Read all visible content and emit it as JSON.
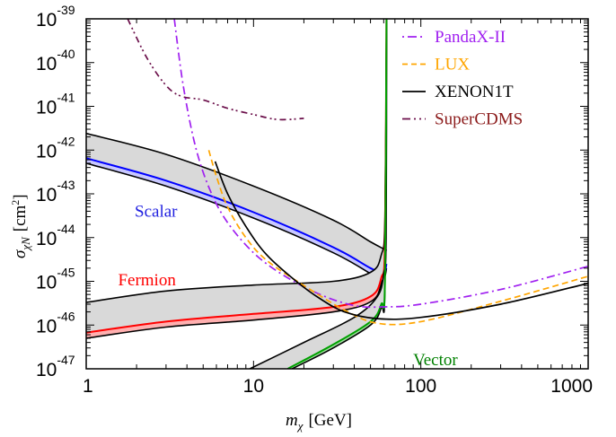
{
  "chart_data": {
    "type": "line",
    "title": "",
    "xlabel": "m_χ [GeV]",
    "xlabel_main": "m",
    "xlabel_sub": "χ",
    "xlabel_unit": "[GeV]",
    "ylabel": "σ_χN [cm²]",
    "ylabel_main": "σ",
    "ylabel_sub": "χN",
    "ylabel_unit_open": "[cm",
    "ylabel_unit_sup": "2",
    "ylabel_unit_close": "]",
    "xscale": "log",
    "yscale": "log",
    "xlim": [
      1,
      1000
    ],
    "ylim": [
      1e-47,
      1e-39
    ],
    "xticks": [
      {
        "value": 1,
        "label": "1"
      },
      {
        "value": 10,
        "label": "10"
      },
      {
        "value": 100,
        "label": "100"
      },
      {
        "value": 1000,
        "label": "1000"
      }
    ],
    "yticks": [
      {
        "value": -39,
        "base": "10",
        "exp": "-39"
      },
      {
        "value": -40,
        "base": "10",
        "exp": "-40"
      },
      {
        "value": -41,
        "base": "10",
        "exp": "-41"
      },
      {
        "value": -42,
        "base": "10",
        "exp": "-42"
      },
      {
        "value": -43,
        "base": "10",
        "exp": "-43"
      },
      {
        "value": -44,
        "base": "10",
        "exp": "-44"
      },
      {
        "value": -45,
        "base": "10",
        "exp": "-45"
      },
      {
        "value": -46,
        "base": "10",
        "exp": "-46"
      },
      {
        "value": -47,
        "base": "10",
        "exp": "-47"
      }
    ],
    "grid": false,
    "legend_position": "top-right",
    "legend": [
      {
        "name": "PandaX-II",
        "color": "#a020f0",
        "style": "dashdot"
      },
      {
        "name": "LUX",
        "color": "#ffa500",
        "style": "dashed"
      },
      {
        "name": "XENON1T",
        "color": "#000000",
        "style": "solid"
      },
      {
        "name": "SuperCDMS",
        "color": "#6b0f4a",
        "text_color": "#8b1a1a",
        "style": "dashdotdot"
      }
    ],
    "series": [
      {
        "name": "PandaX-II",
        "color": "#a020f0",
        "style": "dashdot",
        "points": [
          [
            3.36,
            1e-39
          ],
          [
            3.8,
            3e-41
          ],
          [
            4.5,
            1.2e-42
          ],
          [
            5.5,
            1.2e-43
          ],
          [
            7,
            2.2e-44
          ],
          [
            10,
            4.5e-45
          ],
          [
            15,
            1.4e-45
          ],
          [
            25,
            5e-46
          ],
          [
            40,
            2.8e-46
          ],
          [
            60,
            2.6e-46
          ],
          [
            100,
            3e-46
          ],
          [
            300,
            6.5e-46
          ],
          [
            1000,
            2.2e-45
          ]
        ]
      },
      {
        "name": "LUX",
        "color": "#ffa500",
        "style": "dashed",
        "points": [
          [
            5.4,
            1e-42
          ],
          [
            6,
            2.5e-43
          ],
          [
            7,
            5e-44
          ],
          [
            9,
            1e-44
          ],
          [
            12,
            3e-45
          ],
          [
            20,
            8e-46
          ],
          [
            35,
            2.2e-46
          ],
          [
            55,
            1.1e-46
          ],
          [
            100,
            1.2e-46
          ],
          [
            300,
            3.5e-46
          ],
          [
            1000,
            1.3e-45
          ]
        ]
      },
      {
        "name": "XENON1T",
        "color": "#000000",
        "style": "solid",
        "points": [
          [
            5.9,
            5.5e-43
          ],
          [
            7,
            1e-43
          ],
          [
            9,
            1.8e-44
          ],
          [
            12,
            4e-45
          ],
          [
            18,
            1e-45
          ],
          [
            25,
            4e-46
          ],
          [
            35,
            2e-46
          ],
          [
            55,
            1.4e-46
          ],
          [
            100,
            1.5e-46
          ],
          [
            300,
            3e-46
          ],
          [
            1000,
            9e-46
          ]
        ]
      },
      {
        "name": "SuperCDMS",
        "color": "#6b0f4a",
        "style": "dashdotdot",
        "points": [
          [
            1.77,
            1e-39
          ],
          [
            2.3,
            1.3e-40
          ],
          [
            3,
            3e-41
          ],
          [
            3.7,
            1.7e-41
          ],
          [
            5,
            1.4e-41
          ],
          [
            7,
            9e-42
          ],
          [
            10,
            6.5e-42
          ],
          [
            14,
            5e-42
          ],
          [
            20,
            5.3e-42
          ]
        ]
      }
    ],
    "bands": [
      {
        "name": "Scalar",
        "label_color": "#2020e0",
        "line_color": "#0000ff",
        "fill": "#c8c8ff",
        "upper": [
          [
            1,
            2.4e-42
          ],
          [
            3,
            8e-43
          ],
          [
            10,
            1.5e-43
          ],
          [
            30,
            2.5e-44
          ],
          [
            50,
            8e-45
          ],
          [
            60,
            5.5e-45
          ],
          [
            62.5,
            5e-45
          ]
        ],
        "central": [
          [
            1,
            6.5e-43
          ],
          [
            3,
            2e-43
          ],
          [
            10,
            3.8e-44
          ],
          [
            30,
            6e-45
          ],
          [
            50,
            2e-45
          ],
          [
            58,
            1.6e-45
          ],
          [
            61,
            1.7e-45
          ],
          [
            62.3,
            2.5e-45
          ]
        ],
        "lower": [
          [
            1,
            5e-43
          ],
          [
            3,
            1.5e-43
          ],
          [
            10,
            2.8e-44
          ],
          [
            30,
            4.5e-45
          ],
          [
            50,
            1.5e-45
          ],
          [
            58,
            1.1e-45
          ],
          [
            61,
            1.3e-45
          ],
          [
            62.3,
            2e-45
          ]
        ]
      },
      {
        "name": "Fermion",
        "label_color": "#ff0000",
        "line_color": "#ff0000",
        "fill": "#ffb0b0",
        "upper": [
          [
            1,
            3.3e-46
          ],
          [
            3,
            6e-46
          ],
          [
            10,
            8.2e-46
          ],
          [
            30,
            1e-45
          ],
          [
            50,
            1.6e-45
          ],
          [
            58,
            4e-45
          ],
          [
            61,
            3e-44
          ],
          [
            62.4,
            1e-39
          ]
        ],
        "central": [
          [
            1,
            6.7e-47
          ],
          [
            3,
            1.2e-46
          ],
          [
            10,
            1.8e-46
          ],
          [
            30,
            2.6e-46
          ],
          [
            50,
            4.5e-46
          ],
          [
            58,
            1.2e-45
          ],
          [
            61,
            8e-45
          ],
          [
            62.3,
            1e-39
          ]
        ],
        "lower": [
          [
            1,
            5e-47
          ],
          [
            3,
            9e-47
          ],
          [
            10,
            1.3e-46
          ],
          [
            30,
            2e-46
          ],
          [
            50,
            3.4e-46
          ],
          [
            58,
            9e-46
          ],
          [
            61,
            6e-45
          ],
          [
            62.3,
            1e-39
          ]
        ]
      },
      {
        "name": "Vector",
        "label_color": "#008000",
        "line_color": "#00a000",
        "fill": "#a0e0a0",
        "upper": [
          [
            9.5,
            1e-47
          ],
          [
            20,
            4e-47
          ],
          [
            40,
            1.5e-46
          ],
          [
            55,
            4.5e-46
          ],
          [
            60,
            1.5e-45
          ],
          [
            62,
            1e-44
          ],
          [
            62.5,
            1e-39
          ]
        ],
        "central": [
          [
            16,
            1e-47
          ],
          [
            30,
            3.6e-47
          ],
          [
            50,
            1.2e-46
          ],
          [
            58,
            3e-46
          ],
          [
            61,
            1e-45
          ],
          [
            62.3,
            1e-39
          ]
        ],
        "lower": [
          [
            17,
            1e-47
          ],
          [
            30,
            3e-47
          ],
          [
            50,
            1e-46
          ],
          [
            58,
            2.5e-46
          ],
          [
            61,
            8e-46
          ],
          [
            62.3,
            1e-39
          ]
        ]
      }
    ],
    "annotations": [
      {
        "text": "Scalar",
        "x": 1.95,
        "y": 3e-44,
        "color": "#2020e0"
      },
      {
        "text": "Fermion",
        "x": 1.55,
        "y": 8e-46,
        "color": "#ff0000"
      },
      {
        "text": "Vector",
        "x": 90,
        "y": 1.2e-47,
        "color": "#008000"
      }
    ]
  }
}
